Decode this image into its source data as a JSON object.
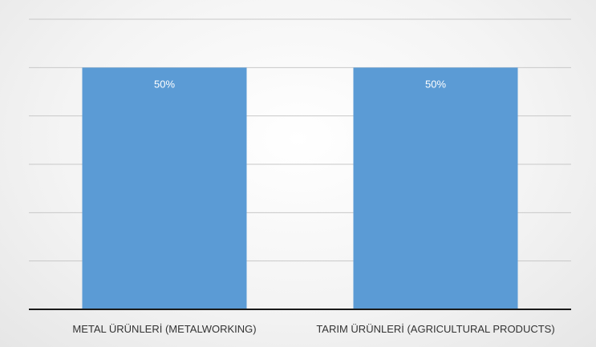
{
  "chart_data": {
    "type": "bar",
    "categories": [
      "METAL ÜRÜNLERİ (METALWORKING)",
      "TARIM ÜRÜNLERİ (AGRICULTURAL PRODUCTS)"
    ],
    "values": [
      50,
      50
    ],
    "data_labels": [
      "50%",
      "50%"
    ],
    "title": "",
    "xlabel": "",
    "ylabel": "",
    "ylim": [
      0,
      60
    ],
    "y_gridline_step": 10,
    "grid": true,
    "legend": "none",
    "colors": {
      "bar": "#5b9bd5",
      "gridline": "#c8c8c8",
      "axis": "#1a1a1a",
      "label_text": "#333333",
      "data_label_text": "#ffffff"
    }
  }
}
